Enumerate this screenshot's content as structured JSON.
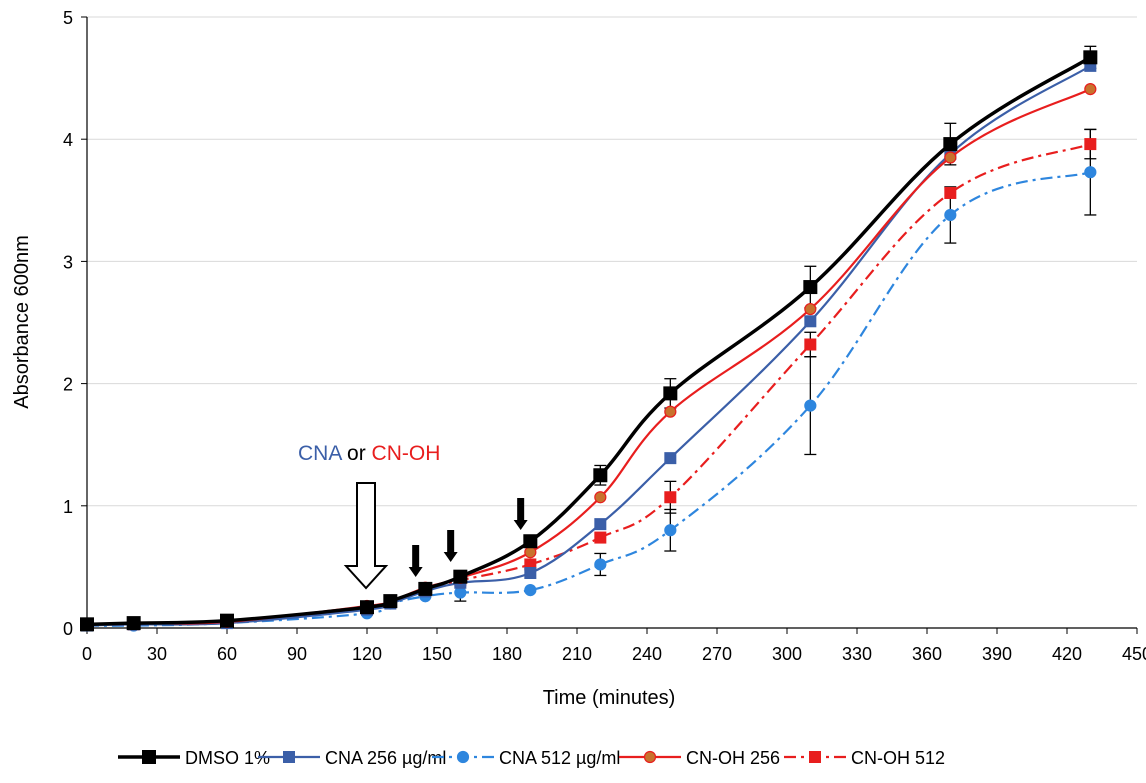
{
  "chart_data": {
    "type": "line",
    "xlabel": "Time (minutes)",
    "ylabel": "Absorbance 600nm",
    "xlim": [
      0,
      450
    ],
    "ylim": [
      0,
      5
    ],
    "xticks": [
      0,
      30,
      60,
      90,
      120,
      150,
      180,
      210,
      240,
      270,
      300,
      330,
      360,
      390,
      420,
      450
    ],
    "yticks": [
      0,
      1,
      2,
      3,
      4,
      5
    ],
    "grid": true,
    "legend_position": "bottom",
    "annotation": {
      "part1": "CNA",
      "part2": " or ",
      "part3": "CN-OH",
      "color1": "#3b5fa8",
      "color3": "#e81e1e",
      "dose_arrow_x": 120,
      "small_arrow_x": [
        140,
        155,
        185
      ]
    },
    "series": [
      {
        "name": "DMSO 1%",
        "color": "#000000",
        "marker": "square",
        "style": "solid",
        "x": [
          0,
          20,
          60,
          120,
          130,
          145,
          160,
          190,
          220,
          250,
          310,
          370,
          430
        ],
        "y": [
          0.03,
          0.04,
          0.06,
          0.17,
          0.22,
          0.32,
          0.42,
          0.71,
          1.25,
          1.92,
          2.79,
          3.96,
          4.67
        ],
        "err": [
          0,
          0,
          0,
          0,
          0,
          0,
          0,
          0,
          0.08,
          0.12,
          0.17,
          0.17,
          0.09
        ]
      },
      {
        "name": "CNA 256 µg/ml",
        "color": "#3b5fa8",
        "marker": "square",
        "style": "solid",
        "x": [
          0,
          20,
          60,
          120,
          130,
          145,
          160,
          190,
          220,
          250,
          310,
          370,
          430
        ],
        "y": [
          0.02,
          0.03,
          0.04,
          0.15,
          0.2,
          0.3,
          0.37,
          0.45,
          0.85,
          1.39,
          2.51,
          3.88,
          4.6
        ],
        "err": [
          0,
          0,
          0,
          0,
          0,
          0,
          0,
          0,
          0,
          0,
          0,
          0,
          0
        ]
      },
      {
        "name": "CNA 512 µg/ml",
        "color": "#2e86de",
        "marker": "circle",
        "style": "dashdot",
        "x": [
          0,
          20,
          60,
          120,
          130,
          145,
          160,
          190,
          220,
          250,
          310,
          370,
          430
        ],
        "y": [
          0.02,
          0.02,
          0.04,
          0.12,
          0.2,
          0.26,
          0.29,
          0.31,
          0.52,
          0.8,
          1.82,
          3.38,
          3.73
        ],
        "err": [
          0,
          0,
          0,
          0,
          0,
          0,
          0.07,
          0,
          0.09,
          0.17,
          0.4,
          0.23,
          0.35
        ]
      },
      {
        "name": "CN-OH 256",
        "color": "#e81e1e",
        "marker": "circle",
        "marker_fill": "#c8722d",
        "style": "solid",
        "x": [
          0,
          20,
          60,
          120,
          130,
          145,
          160,
          190,
          220,
          250,
          310,
          370,
          430
        ],
        "y": [
          0.03,
          0.04,
          0.05,
          0.18,
          0.22,
          0.33,
          0.41,
          0.62,
          1.07,
          1.77,
          2.61,
          3.85,
          4.41
        ],
        "err": [
          0,
          0,
          0,
          0,
          0,
          0,
          0,
          0,
          0,
          0,
          0,
          0,
          0
        ]
      },
      {
        "name": "CN-OH 512",
        "color": "#e81e1e",
        "marker": "square",
        "style": "dashdot",
        "x": [
          0,
          20,
          60,
          120,
          130,
          145,
          160,
          190,
          220,
          250,
          310,
          370,
          430
        ],
        "y": [
          0.03,
          0.03,
          0.05,
          0.17,
          0.21,
          0.32,
          0.39,
          0.52,
          0.74,
          1.07,
          2.32,
          3.56,
          3.96
        ],
        "err": [
          0,
          0,
          0,
          0,
          0,
          0,
          0,
          0,
          0,
          0.13,
          0.1,
          0,
          0.12
        ]
      }
    ]
  }
}
